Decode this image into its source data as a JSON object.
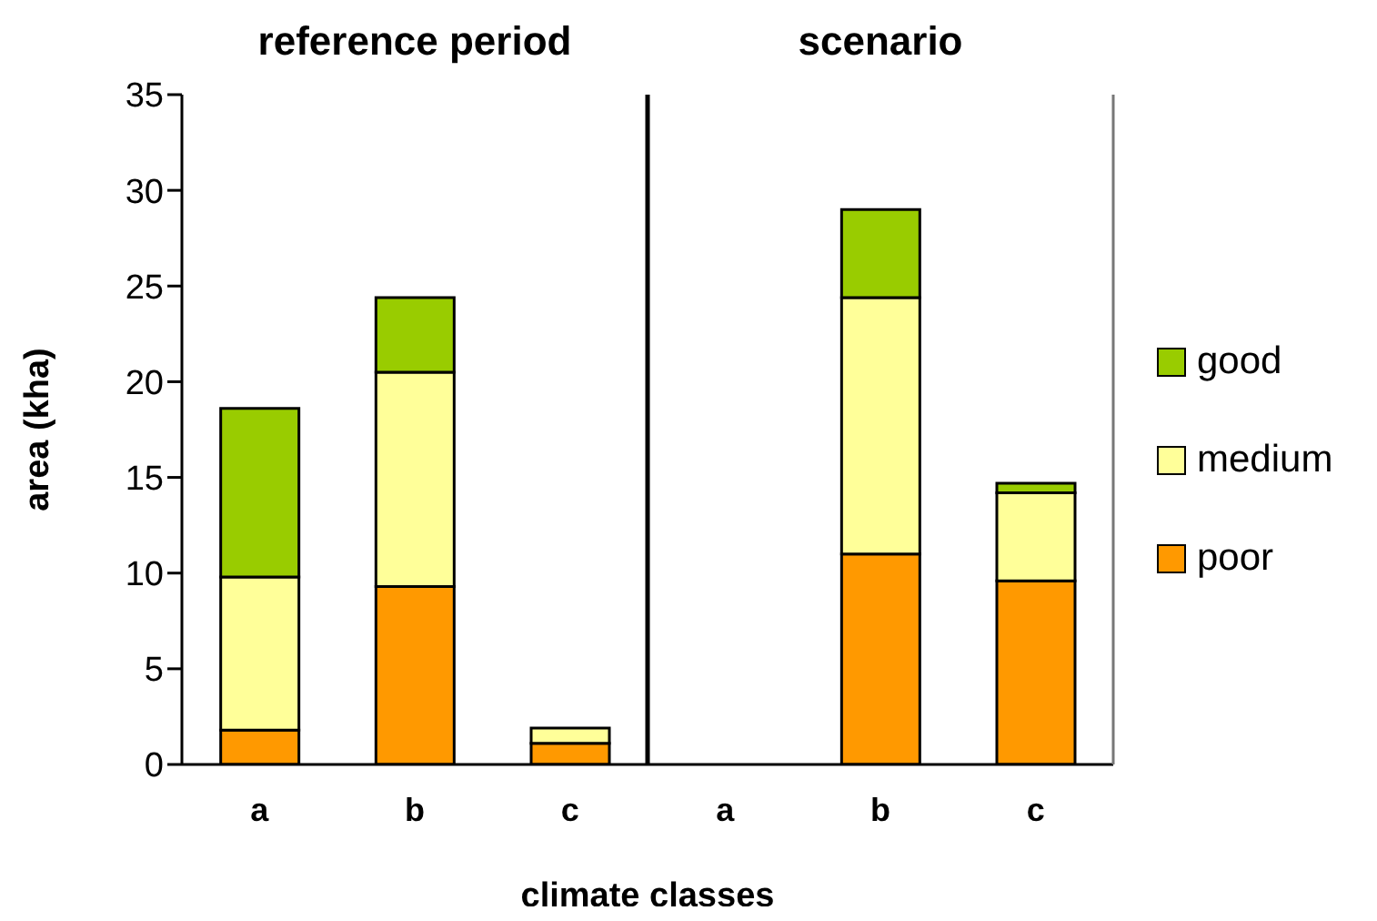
{
  "chart_data": {
    "type": "bar",
    "stacked": true,
    "xlabel": "climate classes",
    "ylabel": "area (kha)",
    "annotations": [
      "reference period",
      "scenario"
    ],
    "categories": [
      "a",
      "b",
      "c",
      "a",
      "b",
      "c"
    ],
    "series": [
      {
        "name": "poor",
        "color": "#ff9900",
        "values": [
          1.8,
          9.3,
          1.1,
          0,
          11.0,
          9.6
        ]
      },
      {
        "name": "medium",
        "color": "#ffff99",
        "values": [
          8.0,
          11.2,
          0.8,
          0,
          13.4,
          4.6
        ]
      },
      {
        "name": "good",
        "color": "#99cc00",
        "values": [
          8.8,
          3.9,
          0,
          0,
          4.6,
          0.5
        ]
      }
    ],
    "ylim": [
      0,
      35
    ],
    "yticks": [
      0,
      5,
      10,
      15,
      20,
      25,
      30,
      35
    ],
    "grid": false,
    "legend": "right"
  }
}
